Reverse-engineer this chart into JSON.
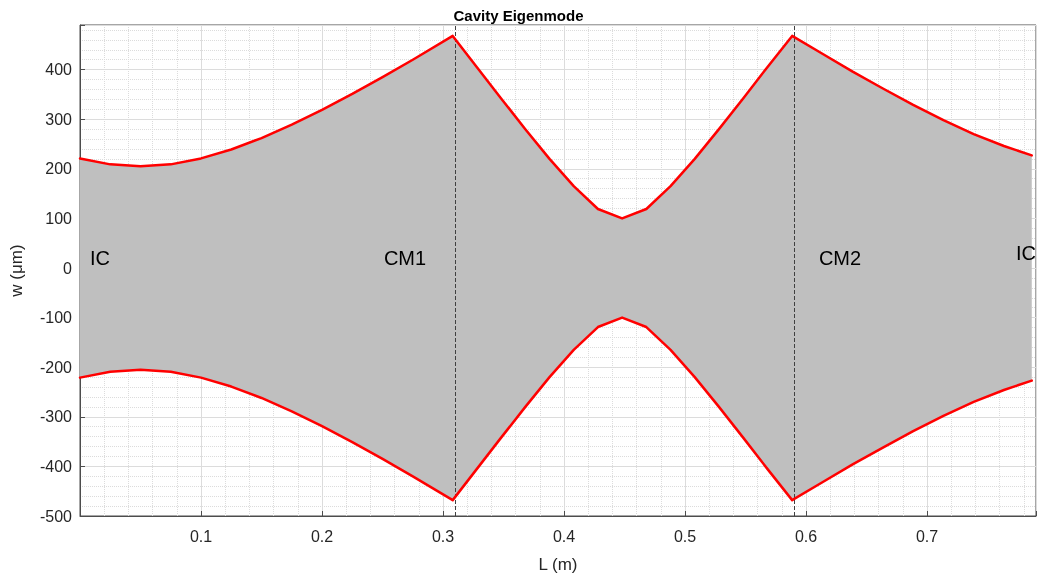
{
  "chart_data": {
    "type": "line",
    "title": "Cavity Eigenmode",
    "xlabel": "L (m)",
    "ylabel": "w (μm)",
    "x": [
      0,
      0.025,
      0.05,
      0.075,
      0.1,
      0.125,
      0.15,
      0.175,
      0.2,
      0.225,
      0.25,
      0.275,
      0.308,
      0.328,
      0.348,
      0.368,
      0.388,
      0.408,
      0.428,
      0.448,
      0.468,
      0.488,
      0.508,
      0.528,
      0.548,
      0.568,
      0.5885,
      0.6135,
      0.6385,
      0.6635,
      0.6885,
      0.7135,
      0.7385,
      0.7635,
      0.7865
    ],
    "series": [
      {
        "color": "#ff0000",
        "values": [
          221,
          209,
          205,
          209,
          221,
          239,
          262,
          289,
          319,
          351,
          385,
          420,
          468,
          405,
          342,
          280,
          220,
          165,
          119,
          100,
          119,
          165,
          220,
          280,
          342,
          405,
          468,
          432,
          396,
          362,
          329,
          298,
          270,
          246,
          227
        ],
        "upper": [
          221,
          209,
          205,
          209,
          221,
          239,
          262,
          289,
          319,
          351,
          385,
          420,
          468,
          405,
          342,
          280,
          220,
          165,
          119,
          100,
          119,
          165,
          220,
          280,
          342,
          405,
          468,
          432,
          396,
          362,
          329,
          298,
          270,
          246,
          227
        ],
        "lower": [
          -221,
          -209,
          -205,
          -209,
          -221,
          -239,
          -262,
          -289,
          -319,
          -351,
          -385,
          -420,
          -468,
          -405,
          -342,
          -280,
          -220,
          -165,
          -119,
          -100,
          -119,
          -165,
          -220,
          -280,
          -342,
          -405,
          -468,
          -432,
          -396,
          -362,
          -329,
          -298,
          -270,
          -246,
          -227
        ]
      },
      {
        "color": "#ff0000",
        "values": [
          -221,
          -209,
          -205,
          -209,
          -221,
          -239,
          -262,
          -289,
          -319,
          -351,
          -385,
          -420,
          -468,
          -405,
          -342,
          -280,
          -220,
          -165,
          -119,
          -100,
          -119,
          -165,
          -220,
          -280,
          -342,
          -405,
          -468,
          -432,
          -396,
          -362,
          -329,
          -298,
          -270,
          -246,
          -227
        ]
      }
    ],
    "xlim": [
      0,
      0.79
    ],
    "xticks": [
      {
        "value": 0,
        "label": null
      },
      0.1,
      0.2,
      0.3,
      0.4,
      0.5,
      0.6,
      0.7
    ],
    "ylim": [
      -500,
      490
    ],
    "yticks": [
      -500,
      -400,
      -300,
      -200,
      -100,
      0,
      100,
      200,
      300,
      400
    ],
    "ref_lines": [
      {
        "axis": "x",
        "value": 0.308,
        "color": "#404040",
        "line_style": "dashed"
      },
      {
        "axis": "x",
        "value": 0.5885,
        "color": "#404040",
        "line_style": "dashed"
      }
    ],
    "annotations": [
      "IC",
      "CM1",
      "CM2",
      "IC"
    ],
    "grid": true,
    "marker": "none",
    "line_style": "solid"
  }
}
